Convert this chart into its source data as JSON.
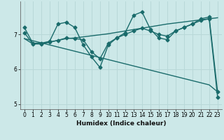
{
  "title": "",
  "xlabel": "Humidex (Indice chaleur)",
  "background_color": "#cce8e8",
  "grid_color": "#b8d8d8",
  "line_color": "#1a6b6b",
  "xlim": [
    -0.5,
    23.5
  ],
  "ylim": [
    4.85,
    7.95
  ],
  "yticks": [
    5,
    6,
    7
  ],
  "xticks": [
    0,
    1,
    2,
    3,
    4,
    5,
    6,
    7,
    8,
    9,
    10,
    11,
    12,
    13,
    14,
    15,
    16,
    17,
    18,
    19,
    20,
    21,
    22,
    23
  ],
  "series1_marked": {
    "x": [
      0,
      1,
      2,
      3,
      4,
      5,
      6,
      7,
      8,
      9,
      10,
      11,
      12,
      13,
      14,
      15,
      16,
      17,
      18,
      19,
      20,
      21,
      22,
      23
    ],
    "y": [
      7.2,
      6.75,
      6.75,
      6.8,
      7.3,
      7.35,
      7.2,
      6.7,
      6.35,
      6.05,
      6.7,
      6.9,
      7.05,
      7.55,
      7.65,
      7.15,
      6.9,
      6.85,
      7.1,
      7.2,
      7.3,
      7.45,
      7.5,
      5.35
    ]
  },
  "series2_line": {
    "x": [
      0,
      1,
      2,
      3,
      4,
      5,
      6,
      7,
      8,
      9,
      10,
      11,
      12,
      13,
      14,
      15,
      16,
      17,
      18,
      19,
      20,
      21,
      22,
      23
    ],
    "y": [
      6.88,
      6.73,
      6.73,
      6.78,
      6.83,
      6.88,
      6.9,
      6.93,
      6.96,
      6.99,
      7.02,
      7.06,
      7.1,
      7.14,
      7.18,
      7.22,
      7.26,
      7.3,
      7.33,
      7.36,
      7.39,
      7.42,
      7.45,
      7.48
    ]
  },
  "series3_marked": {
    "x": [
      0,
      1,
      2,
      3,
      4,
      5,
      6,
      7,
      8,
      9,
      10,
      11,
      12,
      13,
      14,
      15,
      16,
      17,
      18,
      19,
      20,
      21,
      22,
      23
    ],
    "y": [
      7.05,
      6.73,
      6.73,
      6.78,
      6.83,
      6.9,
      6.88,
      6.85,
      6.5,
      6.3,
      6.75,
      6.9,
      7.0,
      7.1,
      7.18,
      7.1,
      7.0,
      6.95,
      7.1,
      7.2,
      7.3,
      7.4,
      7.45,
      5.2
    ]
  },
  "series4_diagonal": {
    "x": [
      0,
      22,
      23
    ],
    "y": [
      6.88,
      5.55,
      5.35
    ]
  },
  "marker_size": 2.5,
  "line_width": 1.0,
  "tick_fontsize": 5.5,
  "xlabel_fontsize": 6.5
}
